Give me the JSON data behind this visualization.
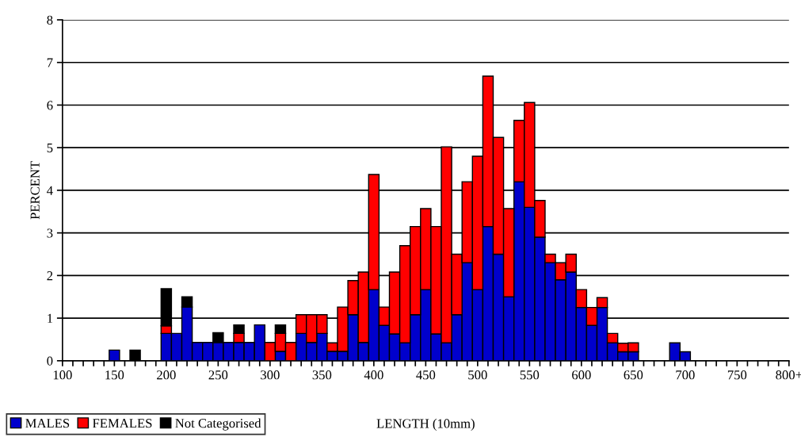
{
  "chart_data": {
    "type": "bar",
    "stacked": true,
    "xlabel": "LENGTH (10mm)",
    "ylabel": "PERCENT",
    "x": [
      150,
      170,
      200,
      210,
      220,
      230,
      240,
      250,
      260,
      270,
      280,
      290,
      300,
      310,
      320,
      330,
      340,
      350,
      360,
      370,
      380,
      390,
      400,
      410,
      420,
      430,
      440,
      450,
      460,
      470,
      480,
      490,
      500,
      510,
      520,
      530,
      540,
      550,
      560,
      570,
      580,
      590,
      600,
      610,
      620,
      630,
      640,
      650,
      690,
      700
    ],
    "series": [
      {
        "name": "MALES",
        "color": "#0000cc",
        "values": [
          0.25,
          null,
          0.64,
          0.64,
          1.26,
          0.43,
          0.43,
          0.43,
          0.43,
          0.43,
          0.43,
          0.84,
          null,
          0.22,
          null,
          0.64,
          0.43,
          0.64,
          0.22,
          0.22,
          1.08,
          0.43,
          1.67,
          0.83,
          0.63,
          0.42,
          1.08,
          1.67,
          0.63,
          0.42,
          1.08,
          2.3,
          1.67,
          3.15,
          2.5,
          1.5,
          4.2,
          3.6,
          2.9,
          2.3,
          1.9,
          2.08,
          1.25,
          0.83,
          1.25,
          0.42,
          0.21,
          0.21,
          0.42,
          0.21
        ]
      },
      {
        "name": "FEMALES",
        "color": "#ff0000",
        "values": [
          null,
          null,
          0.18,
          null,
          null,
          null,
          null,
          null,
          null,
          0.21,
          null,
          null,
          0.43,
          0.42,
          0.43,
          0.44,
          0.65,
          0.44,
          0.2,
          1.04,
          0.8,
          1.65,
          2.7,
          0.43,
          1.45,
          2.28,
          2.07,
          1.9,
          2.52,
          4.6,
          1.42,
          1.9,
          3.13,
          3.53,
          2.74,
          2.07,
          1.44,
          2.46,
          0.86,
          0.2,
          0.4,
          0.42,
          0.42,
          0.42,
          0.23,
          0.22,
          0.2,
          0.21,
          null,
          null
        ]
      },
      {
        "name": "Not Categorised",
        "color": "#000000",
        "values": [
          null,
          0.25,
          0.87,
          null,
          0.24,
          null,
          null,
          0.23,
          null,
          0.2,
          null,
          null,
          null,
          0.2,
          null,
          null,
          null,
          null,
          null,
          null,
          null,
          null,
          null,
          null,
          null,
          null,
          null,
          null,
          null,
          null,
          null,
          null,
          null,
          null,
          null,
          null,
          null,
          null,
          null,
          null,
          null,
          null,
          null,
          null,
          null,
          null,
          null,
          null,
          null,
          null
        ]
      }
    ],
    "xlim": [
      100,
      800
    ],
    "xticks": [
      100,
      {
        "value": 110,
        "label": null
      },
      {
        "value": 120,
        "label": null
      },
      {
        "value": 130,
        "label": null
      },
      {
        "value": 140,
        "label": null
      },
      150,
      {
        "value": 160,
        "label": null
      },
      {
        "value": 170,
        "label": null
      },
      {
        "value": 180,
        "label": null
      },
      {
        "value": 190,
        "label": null
      },
      200,
      {
        "value": 210,
        "label": null
      },
      {
        "value": 220,
        "label": null
      },
      {
        "value": 230,
        "label": null
      },
      {
        "value": 240,
        "label": null
      },
      250,
      {
        "value": 260,
        "label": null
      },
      {
        "value": 270,
        "label": null
      },
      {
        "value": 280,
        "label": null
      },
      {
        "value": 290,
        "label": null
      },
      300,
      {
        "value": 310,
        "label": null
      },
      {
        "value": 320,
        "label": null
      },
      {
        "value": 330,
        "label": null
      },
      {
        "value": 340,
        "label": null
      },
      350,
      {
        "value": 360,
        "label": null
      },
      {
        "value": 370,
        "label": null
      },
      {
        "value": 380,
        "label": null
      },
      {
        "value": 390,
        "label": null
      },
      400,
      {
        "value": 410,
        "label": null
      },
      {
        "value": 420,
        "label": null
      },
      {
        "value": 430,
        "label": null
      },
      {
        "value": 440,
        "label": null
      },
      450,
      {
        "value": 460,
        "label": null
      },
      {
        "value": 470,
        "label": null
      },
      {
        "value": 480,
        "label": null
      },
      {
        "value": 490,
        "label": null
      },
      500,
      {
        "value": 510,
        "label": null
      },
      {
        "value": 520,
        "label": null
      },
      {
        "value": 530,
        "label": null
      },
      {
        "value": 540,
        "label": null
      },
      550,
      {
        "value": 560,
        "label": null
      },
      {
        "value": 570,
        "label": null
      },
      {
        "value": 580,
        "label": null
      },
      {
        "value": 590,
        "label": null
      },
      600,
      {
        "value": 610,
        "label": null
      },
      {
        "value": 620,
        "label": null
      },
      {
        "value": 630,
        "label": null
      },
      {
        "value": 640,
        "label": null
      },
      650,
      {
        "value": 660,
        "label": null
      },
      {
        "value": 670,
        "label": null
      },
      {
        "value": 680,
        "label": null
      },
      {
        "value": 690,
        "label": null
      },
      700,
      {
        "value": 710,
        "label": null
      },
      {
        "value": 720,
        "label": null
      },
      {
        "value": 730,
        "label": null
      },
      {
        "value": 740,
        "label": null
      },
      750,
      {
        "value": 760,
        "label": null
      },
      {
        "value": 770,
        "label": null
      },
      {
        "value": 780,
        "label": null
      },
      {
        "value": 790,
        "label": null
      },
      {
        "value": 800,
        "label": "800+"
      }
    ],
    "ylim": [
      0,
      8
    ],
    "yticks": [
      0,
      1,
      2,
      3,
      4,
      5,
      6,
      7,
      8
    ],
    "grid": "y",
    "legend": "bottom left"
  }
}
